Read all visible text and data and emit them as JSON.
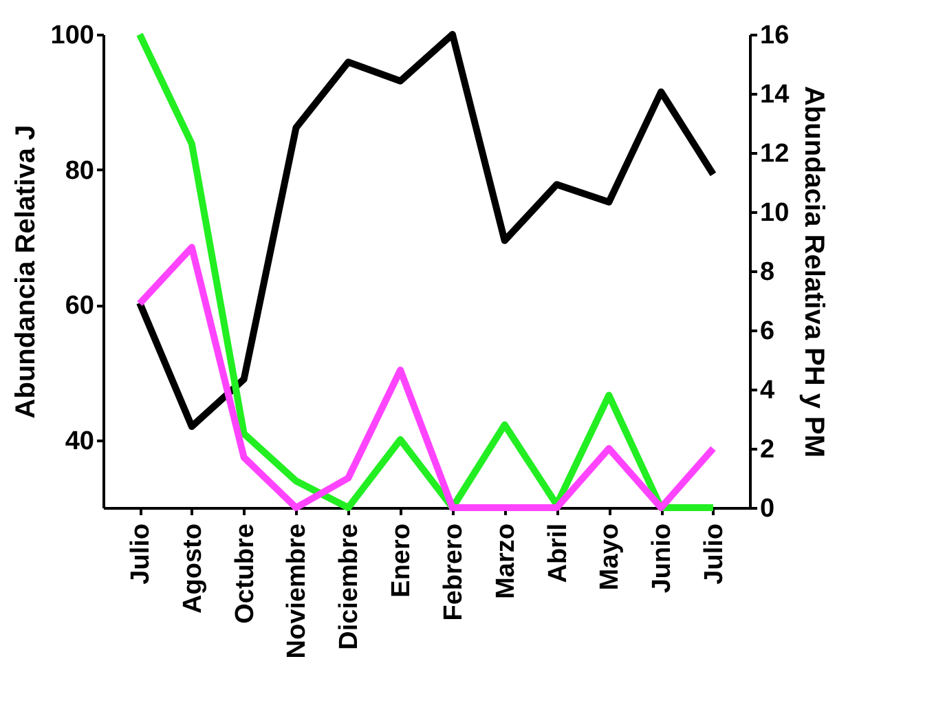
{
  "chart_data": {
    "type": "line",
    "ylabel": "Abundancia Relativa J",
    "y2label": "Abundacia Relativa PH y PM",
    "categories": [
      "Julio",
      "Agosto",
      "Octubre",
      "Noviembre",
      "Diciembre",
      "Enero",
      "Febrero",
      "Marzo",
      "Abril",
      "Mayo",
      "Junio",
      "Julio"
    ],
    "ylim": [
      30,
      100
    ],
    "yticks": [
      40,
      60,
      80,
      100
    ],
    "y2lim": [
      0,
      16
    ],
    "y2ticks": [
      0,
      2,
      4,
      6,
      8,
      10,
      12,
      14,
      16
    ],
    "series": [
      {
        "color": "#000000",
        "values": [
          60.3,
          42,
          49,
          86.2,
          95.9,
          93.1,
          100,
          69.5,
          77.8,
          75.2,
          91.5,
          79.3
        ]
      },
      {
        "color": "#22ee22",
        "axis": "y2",
        "values": [
          16,
          12.3,
          2.5,
          0.9,
          0,
          2.3,
          0,
          2.8,
          0.1,
          3.8,
          0,
          0
        ]
      },
      {
        "color": "#ff44ff",
        "axis": "y2",
        "values": [
          6.9,
          8.8,
          1.7,
          0,
          1,
          4.65,
          0,
          0,
          0,
          2,
          0,
          2
        ]
      }
    ],
    "grid": false,
    "legend": false
  }
}
